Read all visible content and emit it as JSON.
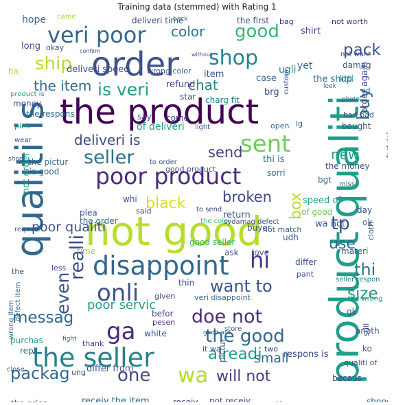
{
  "title": "Training data (stemmed) with Rating 1",
  "words": [
    {
      "t": "the product",
      "c": "#440154"
    },
    {
      "t": "qualiti is",
      "c": "#31688e"
    },
    {
      "t": "product qualiti",
      "c": "#1f9e89"
    },
    {
      "t": "not good",
      "c": "#b5de2b"
    },
    {
      "t": "order",
      "c": "#3b528b"
    },
    {
      "t": "disappoint",
      "c": "#31688e"
    },
    {
      "t": "poor product",
      "c": "#472d7b"
    },
    {
      "t": "the seller",
      "c": "#26828e"
    },
    {
      "t": "veri poor",
      "c": "#31688e"
    },
    {
      "t": "shop",
      "c": "#26828e"
    },
    {
      "t": "onli",
      "c": "#3b528b"
    },
    {
      "t": "seller",
      "c": "#2c728e"
    },
    {
      "t": "sent",
      "c": "#6ece58"
    },
    {
      "t": "ga",
      "c": "#482878"
    },
    {
      "t": "doe not",
      "c": "#472d7b"
    },
    {
      "t": "wa",
      "c": "#b5de2b"
    },
    {
      "t": "good",
      "c": "#35b779"
    },
    {
      "t": "color",
      "c": "#2c728e"
    },
    {
      "t": "pack",
      "c": "#3b528b"
    },
    {
      "t": "ship",
      "c": "#b5de2b"
    },
    {
      "t": "is veri",
      "c": "#1f9e89"
    },
    {
      "t": "buy",
      "c": "#2c728e"
    },
    {
      "t": "the item",
      "c": "#31688e"
    },
    {
      "t": "chat",
      "c": "#26828e"
    },
    {
      "t": "deliveri is",
      "c": "#3e4989"
    },
    {
      "t": "send",
      "c": "#433e85"
    },
    {
      "t": "new",
      "c": "#1f9e89"
    },
    {
      "t": "broken",
      "c": "#3e4989"
    },
    {
      "t": "black",
      "c": "#d8e219"
    },
    {
      "t": "box",
      "c": "#b5de2b"
    },
    {
      "t": "tp",
      "c": "#3b528b"
    },
    {
      "t": "realli",
      "c": "#3e4989"
    },
    {
      "t": "poor qualiti",
      "c": "#3b528b"
    },
    {
      "t": "hi",
      "c": "#443983"
    },
    {
      "t": "use",
      "c": "#31688e"
    },
    {
      "t": "want to",
      "c": "#3b528b"
    },
    {
      "t": "thi",
      "c": "#2c728e"
    },
    {
      "t": "size",
      "c": "#21918c"
    },
    {
      "t": "even",
      "c": "#3b528b"
    },
    {
      "t": "messag",
      "c": "#31688e"
    },
    {
      "t": "poor servic",
      "c": "#1f9e89"
    },
    {
      "t": "the good",
      "c": "#31688e"
    },
    {
      "t": "alreadi",
      "c": "#1f9e89"
    },
    {
      "t": "packag",
      "c": "#31688e"
    },
    {
      "t": "one",
      "c": "#3e4989"
    },
    {
      "t": "will not",
      "c": "#433e85"
    },
    {
      "t": "small",
      "c": "#31688e"
    },
    {
      "t": "hope",
      "c": "#31688e"
    },
    {
      "t": "came",
      "c": "#a0da39"
    },
    {
      "t": "deliveri time",
      "c": "#3e4989"
    },
    {
      "t": "back",
      "c": "#31688e"
    },
    {
      "t": "the first",
      "c": "#3b528b"
    },
    {
      "t": "bag",
      "c": "#472d7b"
    },
    {
      "t": "not worth",
      "c": "#472d7b"
    },
    {
      "t": "long",
      "c": "#3e4989"
    },
    {
      "t": "refund",
      "c": "#433e85"
    },
    {
      "t": "deliveri speed",
      "c": "#3e4989"
    },
    {
      "t": "wrong color",
      "c": "#3b528b"
    },
    {
      "t": "case",
      "c": "#31688e"
    },
    {
      "t": "ugli",
      "c": "#26828e"
    },
    {
      "t": "shirt",
      "c": "#3e4989"
    },
    {
      "t": "not want",
      "c": "#3e4989"
    },
    {
      "t": "yet",
      "c": "#31688e"
    },
    {
      "t": "damag",
      "c": "#3b528b"
    },
    {
      "t": "littl",
      "c": "#1f9e89"
    },
    {
      "t": "the shop",
      "c": "#31688e"
    },
    {
      "t": "item",
      "c": "#3b528b"
    },
    {
      "t": "star",
      "c": "#433e85"
    },
    {
      "t": "charg fit",
      "c": "#26828e"
    },
    {
      "t": "product is",
      "c": "#1f9e89"
    },
    {
      "t": "money",
      "c": "#3e4989"
    },
    {
      "t": "the respons",
      "c": "#31688e"
    },
    {
      "t": "say",
      "c": "#3b528b"
    },
    {
      "t": "come",
      "c": "#433e85"
    },
    {
      "t": "of deliveri",
      "c": "#1f9e89"
    },
    {
      "t": "bought",
      "c": "#3b528b"
    },
    {
      "t": "lg",
      "c": "#3b528b"
    },
    {
      "t": "light",
      "c": "#3b528b"
    },
    {
      "t": "open",
      "c": "#31688e"
    },
    {
      "t": "pink",
      "c": "#1f9e89"
    },
    {
      "t": "the pictur",
      "c": "#31688e"
    },
    {
      "t": "to order",
      "c": "#3b528b"
    },
    {
      "t": "good product",
      "c": "#3e4989"
    },
    {
      "t": "thi is",
      "c": "#31688e"
    },
    {
      "t": "the money",
      "c": "#3b528b"
    },
    {
      "t": "not order",
      "c": "#1f9e89"
    },
    {
      "t": "is good",
      "c": "#31688e"
    },
    {
      "t": "bgt",
      "c": "#2c728e"
    },
    {
      "t": "sorri",
      "c": "#31688e"
    },
    {
      "t": "speed of",
      "c": "#1f9e89"
    },
    {
      "t": "of good",
      "c": "#6ece58"
    },
    {
      "t": "whi",
      "c": "#3b528b"
    },
    {
      "t": "said",
      "c": "#3e4989"
    },
    {
      "t": "to send",
      "c": "#433e85"
    },
    {
      "t": "the order",
      "c": "#31688e"
    },
    {
      "t": "day",
      "c": "#3e4989"
    },
    {
      "t": "wa not",
      "c": "#3b528b"
    },
    {
      "t": "ok",
      "c": "#31688e"
    },
    {
      "t": "return",
      "c": "#3b528b"
    },
    {
      "t": "not match",
      "c": "#31688e"
    },
    {
      "t": "the color",
      "c": "#35b779"
    },
    {
      "t": "buyer",
      "c": "#3e4989"
    },
    {
      "t": "udh",
      "c": "#3b528b"
    },
    {
      "t": "good seller",
      "c": "#35b779"
    },
    {
      "t": "time",
      "c": "#a0da39"
    },
    {
      "t": "ask",
      "c": "#3e4989"
    },
    {
      "t": "love",
      "c": "#3b528b"
    },
    {
      "t": "cloth",
      "c": "#3e4989"
    },
    {
      "t": "materi",
      "c": "#3b528b"
    },
    {
      "t": "less",
      "c": "#3e4989"
    },
    {
      "t": "differ",
      "c": "#3b528b"
    },
    {
      "t": "pant",
      "c": "#3b528b"
    },
    {
      "t": "seller respon",
      "c": "#26828e"
    },
    {
      "t": "thin",
      "c": "#3e4989"
    },
    {
      "t": "veri disappoint",
      "c": "#31688e"
    },
    {
      "t": "the wrong",
      "c": "#1f9e89"
    },
    {
      "t": "gk",
      "c": "#3b528b"
    },
    {
      "t": "defect item",
      "c": "#31688e"
    },
    {
      "t": "wrong item",
      "c": "#31688e"
    },
    {
      "t": "befor",
      "c": "#3e4989"
    },
    {
      "t": "pesen",
      "c": "#472d7b"
    },
    {
      "t": "purchas",
      "c": "#1f9e89"
    },
    {
      "t": "white",
      "c": "#3b528b"
    },
    {
      "t": "anoth",
      "c": "#3b528b"
    },
    {
      "t": "repli",
      "c": "#31688e"
    },
    {
      "t": "thank",
      "c": "#3e4989"
    },
    {
      "t": "respons is",
      "c": "#3e4989"
    },
    {
      "t": "ko",
      "c": "#31688e"
    },
    {
      "t": "pictur",
      "c": "#3b528b"
    },
    {
      "t": "two",
      "c": "#3e4989"
    },
    {
      "t": "close",
      "c": "#3b528b"
    },
    {
      "t": "differ from",
      "c": "#3b528b"
    },
    {
      "t": "qualiti of",
      "c": "#3b528b"
    },
    {
      "t": "becaus",
      "c": "#3e4989"
    },
    {
      "t": "ung",
      "c": "#3b528b"
    },
    {
      "t": "the price",
      "c": "#3b528b"
    },
    {
      "t": "shope",
      "c": "#31688e"
    },
    {
      "t": "receiv the item",
      "c": "#31688e"
    },
    {
      "t": "receiv",
      "c": "#3e4989"
    },
    {
      "t": "not receiv",
      "c": "#3b528b"
    },
    {
      "t": "deliveri",
      "c": "#3e4989"
    },
    {
      "t": "blue",
      "c": "#3b528b"
    },
    {
      "t": "custom",
      "c": "#3b528b"
    },
    {
      "t": "brg",
      "c": "#3e4989"
    },
    {
      "t": "bad bad",
      "c": "#3b528b"
    },
    {
      "t": "still",
      "c": "#3e4989"
    },
    {
      "t": "order again",
      "c": "#3e4989"
    },
    {
      "t": "sydamag defect",
      "c": "#3e4989"
    },
    {
      "t": "plea",
      "c": "#3e4989"
    },
    {
      "t": "given",
      "c": "#3e4989"
    },
    {
      "t": "store",
      "c": "#3b528b"
    },
    {
      "t": "it wa",
      "c": "#3b528b"
    },
    {
      "t": "good are",
      "c": "#31688e"
    },
    {
      "t": "fight",
      "c": "#3b528b"
    },
    {
      "t": "request",
      "c": "#31688e"
    },
    {
      "t": "the",
      "c": "#3e4989"
    },
    {
      "t": "ha",
      "c": "#b5de2b"
    },
    {
      "t": "okay",
      "c": "#3b528b"
    },
    {
      "t": "confirm",
      "c": "#3b528b"
    },
    {
      "t": "without",
      "c": "#3b528b"
    },
    {
      "t": "look",
      "c": "#31688e"
    },
    {
      "t": "ad",
      "c": "#31688e"
    },
    {
      "t": "fast del",
      "c": "#3b528b"
    },
    {
      "t": "photo",
      "c": "#31688e"
    },
    {
      "t": "miss",
      "c": "#31688e"
    },
    {
      "t": "wear",
      "c": "#3e4989"
    },
    {
      "t": "shoe",
      "c": "#3b528b"
    }
  ]
}
